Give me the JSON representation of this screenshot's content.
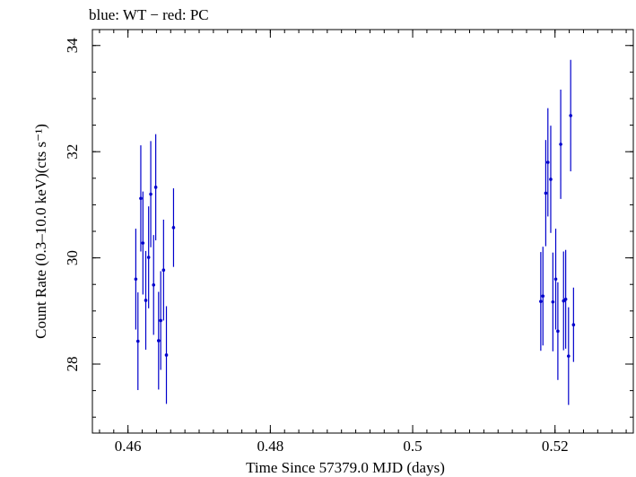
{
  "chart_data": {
    "type": "scatter",
    "title": "blue: WT − red: PC",
    "xlabel": "Time Since 57379.0 MJD (days)",
    "ylabel": "Count Rate (0.3–10.0 keV)(cts s⁻¹)",
    "xlim": [
      0.455,
      0.531
    ],
    "ylim": [
      26.7,
      34.3
    ],
    "x_ticks": [
      {
        "value": 0.46,
        "label": "0.46"
      },
      {
        "value": 0.48,
        "label": "0.48"
      },
      {
        "value": 0.5,
        "label": "0.5"
      },
      {
        "value": 0.52,
        "label": "0.52"
      }
    ],
    "y_ticks": [
      {
        "value": 28,
        "label": "28"
      },
      {
        "value": 30,
        "label": "30"
      },
      {
        "value": 32,
        "label": "32"
      },
      {
        "value": 34,
        "label": "34"
      }
    ],
    "x_minor_step": 0.002,
    "y_minor_step": 0.5,
    "series": [
      {
        "name": "WT",
        "color": "#0000cc",
        "points": [
          {
            "x": 0.4611,
            "y": 29.6,
            "err": 0.95
          },
          {
            "x": 0.4614,
            "y": 28.43,
            "err": 0.92
          },
          {
            "x": 0.4618,
            "y": 31.12,
            "err": 1.0
          },
          {
            "x": 0.4621,
            "y": 30.28,
            "err": 0.97
          },
          {
            "x": 0.4625,
            "y": 29.2,
            "err": 0.93
          },
          {
            "x": 0.4629,
            "y": 30.01,
            "err": 0.96
          },
          {
            "x": 0.4632,
            "y": 31.2,
            "err": 1.0
          },
          {
            "x": 0.4636,
            "y": 29.49,
            "err": 0.94
          },
          {
            "x": 0.4639,
            "y": 31.33,
            "err": 1.0
          },
          {
            "x": 0.4643,
            "y": 28.44,
            "err": 0.92
          },
          {
            "x": 0.4646,
            "y": 28.82,
            "err": 0.93
          },
          {
            "x": 0.465,
            "y": 29.77,
            "err": 0.95
          },
          {
            "x": 0.4654,
            "y": 28.17,
            "err": 0.92
          },
          {
            "x": 0.4664,
            "y": 30.57,
            "err": 0.74
          },
          {
            "x": 0.518,
            "y": 29.18,
            "err": 0.93
          },
          {
            "x": 0.5183,
            "y": 29.28,
            "err": 0.93
          },
          {
            "x": 0.5187,
            "y": 31.22,
            "err": 1.0
          },
          {
            "x": 0.519,
            "y": 31.8,
            "err": 1.02
          },
          {
            "x": 0.5194,
            "y": 31.48,
            "err": 1.01
          },
          {
            "x": 0.5197,
            "y": 29.17,
            "err": 0.93
          },
          {
            "x": 0.5201,
            "y": 29.6,
            "err": 0.95
          },
          {
            "x": 0.5204,
            "y": 28.62,
            "err": 0.92
          },
          {
            "x": 0.5208,
            "y": 32.14,
            "err": 1.03
          },
          {
            "x": 0.5212,
            "y": 29.19,
            "err": 0.93
          },
          {
            "x": 0.5215,
            "y": 29.22,
            "err": 0.93
          },
          {
            "x": 0.5219,
            "y": 28.15,
            "err": 0.92
          },
          {
            "x": 0.5222,
            "y": 32.68,
            "err": 1.05
          },
          {
            "x": 0.5226,
            "y": 28.74,
            "err": 0.7
          }
        ]
      }
    ]
  }
}
